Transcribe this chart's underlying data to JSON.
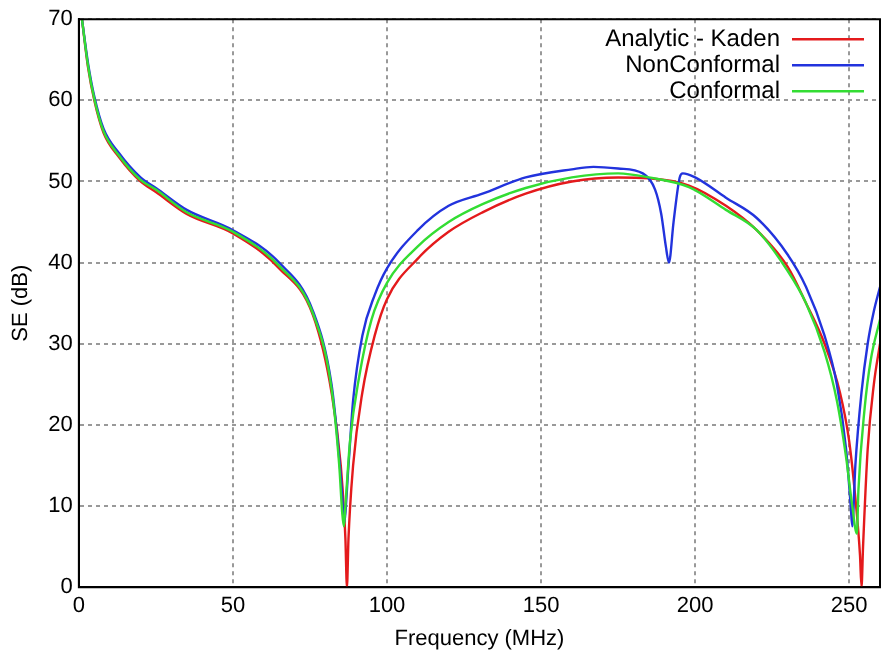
{
  "chart_data": {
    "type": "line",
    "xlabel": "Frequency (MHz)",
    "ylabel": "SE (dB)",
    "xlim": [
      0,
      260
    ],
    "xticks": [
      0,
      50,
      100,
      150,
      200,
      250
    ],
    "ylim": [
      0,
      70
    ],
    "yticks": [
      0,
      10,
      20,
      30,
      40,
      50,
      60,
      70
    ],
    "grid": true,
    "legend": "top right",
    "marker": "none",
    "line_style": "solid",
    "series": [
      {
        "name": "Analytic - Kaden",
        "color": "#e41a1c",
        "x": [
          1,
          3,
          5,
          8,
          13,
          20,
          25,
          35,
          50,
          65,
          76,
          82,
          85,
          86.5,
          87,
          87.5,
          89,
          92,
          96,
          100,
          110,
          120,
          131,
          145,
          160,
          175,
          185,
          198,
          210,
          220,
          230,
          236,
          242,
          247,
          250,
          252,
          253.5,
          254,
          254.5,
          256,
          258,
          260
        ],
        "values": [
          70,
          64,
          60,
          56,
          53,
          50,
          48.7,
          46,
          43.6,
          39.3,
          33.5,
          24,
          15,
          6,
          0,
          6,
          15,
          24,
          31,
          35.5,
          40.5,
          43.8,
          46.2,
          48.5,
          50,
          50.5,
          50.4,
          49.5,
          47,
          44,
          39.5,
          35,
          30,
          24,
          18,
          11,
          4,
          0,
          5,
          17,
          25,
          30
        ]
      },
      {
        "name": "NonConformal",
        "color": "#2233dd",
        "x": [
          1,
          3,
          5,
          8,
          13,
          20,
          25,
          35,
          50,
          65,
          76,
          82,
          84,
          85.5,
          86,
          87.5,
          89,
          92,
          96,
          100,
          110,
          120,
          131,
          145,
          160,
          167,
          175,
          183,
          187,
          189,
          190.5,
          191.5,
          193,
          195,
          196,
          200,
          210,
          220,
          230,
          236,
          242,
          246,
          249,
          250.5,
          251,
          252,
          254,
          256,
          258,
          260
        ],
        "values": [
          70,
          64.5,
          60.5,
          56.5,
          53.5,
          50.5,
          49.2,
          46.5,
          44,
          40,
          34,
          25,
          18,
          11,
          7.8,
          15,
          23,
          31,
          36,
          39.3,
          44,
          47,
          48.5,
          50.5,
          51.5,
          51.8,
          51.6,
          51,
          49,
          46,
          42,
          40,
          45,
          50.5,
          51,
          50.5,
          48,
          45.5,
          41,
          37,
          31,
          25,
          17,
          10,
          7.5,
          15,
          24,
          30,
          34,
          37
        ]
      },
      {
        "name": "Conformal",
        "color": "#33dd33",
        "x": [
          1,
          3,
          5,
          8,
          13,
          20,
          25,
          35,
          50,
          65,
          76,
          82,
          84.5,
          85.5,
          86,
          86.5,
          88,
          91,
          95,
          100,
          110,
          120,
          131,
          145,
          160,
          175,
          185,
          198,
          210,
          220,
          230,
          236,
          242,
          246,
          249,
          251,
          252.5,
          253,
          255,
          257,
          260
        ],
        "values": [
          70,
          64.2,
          60.2,
          56.2,
          53.2,
          50.2,
          49,
          46.2,
          43.8,
          39.6,
          33.7,
          24.5,
          15,
          9,
          7.5,
          10,
          18,
          26,
          33,
          37.5,
          42,
          45,
          47.2,
          49.2,
          50.5,
          51,
          50.5,
          49.3,
          46.5,
          44,
          39,
          35,
          29,
          23,
          16,
          10,
          6.6,
          12,
          22,
          28,
          33
        ]
      }
    ]
  }
}
